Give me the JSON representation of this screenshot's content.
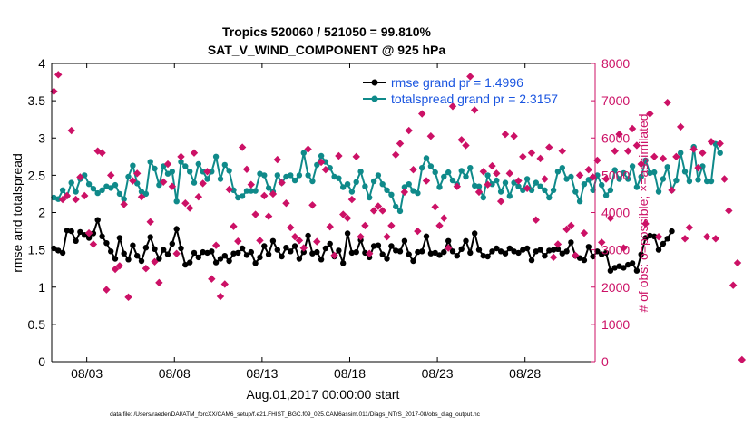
{
  "chart_data": {
    "type": "line",
    "title_line1": "Tropics 520060 / 521050 = 99.810%",
    "title_line2": "SAT_V_WIND_COMPONENT @ 925 hPa",
    "xlabel": "Aug.01,2017 00:00:00 start",
    "ylabel_left": "rmse and totalspread",
    "ylabel_right": "# of obs: o=possible; ×=assimilated",
    "footer": "data file: /Users/raeder/DAI/ATM_forcXX/CAM6_setup/f.e21.FHIST_BGC.f09_025.CAM6assim.011/Diags_NTrS_2017-08/obs_diag_output.nc",
    "xlim": [
      1,
      32
    ],
    "ylim_left": [
      0,
      4
    ],
    "ylim_right": [
      0,
      8000
    ],
    "x_ticks": [
      3,
      8,
      13,
      18,
      23,
      28
    ],
    "x_tick_labels": [
      "08/03",
      "08/08",
      "08/13",
      "08/18",
      "08/23",
      "08/28"
    ],
    "y_left_ticks": [
      0,
      0.5,
      1,
      1.5,
      2,
      2.5,
      3,
      3.5,
      4
    ],
    "y_left_tick_labels": [
      "0",
      "0.5",
      "1",
      "1.5",
      "2",
      "2.5",
      "3",
      "3.5",
      "4"
    ],
    "y_right_ticks": [
      0,
      1000,
      2000,
      3000,
      4000,
      5000,
      6000,
      7000,
      8000
    ],
    "y_right_tick_labels": [
      "0",
      "1000",
      "2000",
      "3000",
      "4000",
      "5000",
      "6000",
      "7000",
      "8000"
    ],
    "x_start": 1.125,
    "x_step": 0.25,
    "series": [
      {
        "name": "rmse",
        "legend": "rmse grand pr = 1.4996",
        "color": "#000000",
        "axis": "left",
        "values": [
          1.52,
          1.49,
          1.46,
          1.76,
          1.75,
          1.62,
          1.74,
          1.7,
          1.66,
          1.72,
          1.9,
          1.68,
          1.59,
          1.48,
          1.38,
          1.66,
          1.45,
          1.37,
          1.56,
          1.42,
          1.35,
          1.53,
          1.67,
          1.51,
          1.38,
          1.5,
          1.44,
          1.58,
          1.78,
          1.52,
          1.3,
          1.33,
          1.46,
          1.4,
          1.47,
          1.46,
          1.48,
          1.33,
          1.38,
          1.42,
          1.35,
          1.45,
          1.46,
          1.52,
          1.43,
          1.47,
          1.32,
          1.4,
          1.55,
          1.44,
          1.62,
          1.5,
          1.41,
          1.53,
          1.48,
          1.55,
          1.38,
          1.47,
          1.69,
          1.45,
          1.47,
          1.37,
          1.52,
          1.58,
          1.41,
          1.49,
          1.32,
          1.72,
          1.46,
          1.47,
          1.63,
          1.46,
          1.4,
          1.55,
          1.56,
          1.44,
          1.38,
          1.55,
          1.49,
          1.48,
          1.62,
          1.44,
          1.35,
          1.47,
          1.48,
          1.68,
          1.45,
          1.46,
          1.43,
          1.47,
          1.62,
          1.48,
          1.42,
          1.51,
          1.62,
          1.46,
          1.72,
          1.5,
          1.42,
          1.41,
          1.48,
          1.52,
          1.48,
          1.45,
          1.52,
          1.48,
          1.46,
          1.5,
          1.52,
          1.36,
          1.48,
          1.5,
          1.42,
          1.49,
          1.5,
          1.51,
          1.45,
          1.48,
          1.6,
          1.42,
          1.39,
          1.36,
          1.54,
          1.41,
          1.48,
          1.44,
          1.46,
          1.22,
          1.26,
          1.28,
          1.26,
          1.3,
          1.32,
          1.22,
          1.44,
          1.66,
          1.69,
          1.68,
          1.5,
          1.58,
          1.65,
          1.75
        ]
      },
      {
        "name": "totalspread",
        "legend": "totalspread grand pr = 2.3157",
        "color": "#0f8a8a",
        "axis": "left",
        "values": [
          2.2,
          2.18,
          2.3,
          2.22,
          2.4,
          2.28,
          2.45,
          2.5,
          2.38,
          2.32,
          2.26,
          2.3,
          2.35,
          2.33,
          2.37,
          2.25,
          2.18,
          2.48,
          2.63,
          2.39,
          2.28,
          2.25,
          2.68,
          2.59,
          2.37,
          2.62,
          2.52,
          2.55,
          2.15,
          2.68,
          2.62,
          2.55,
          2.4,
          2.65,
          2.55,
          2.45,
          2.55,
          2.75,
          2.45,
          2.64,
          2.56,
          2.3,
          2.2,
          2.22,
          2.29,
          2.29,
          2.29,
          2.52,
          2.5,
          2.33,
          2.28,
          2.5,
          2.4,
          2.48,
          2.5,
          2.43,
          2.5,
          2.8,
          2.5,
          2.42,
          2.64,
          2.76,
          2.68,
          2.6,
          2.48,
          2.46,
          2.34,
          2.38,
          2.28,
          2.41,
          2.55,
          2.35,
          2.2,
          2.42,
          2.5,
          2.38,
          2.3,
          2.24,
          2.08,
          2.02,
          2.34,
          2.38,
          2.29,
          2.26,
          2.6,
          2.73,
          2.62,
          2.54,
          2.34,
          2.48,
          2.54,
          2.43,
          2.38,
          2.56,
          2.48,
          2.6,
          2.36,
          2.35,
          2.2,
          2.5,
          2.38,
          2.43,
          2.28,
          2.4,
          2.22,
          2.4,
          2.35,
          2.3,
          2.45,
          2.3,
          2.4,
          2.35,
          2.3,
          2.2,
          2.3,
          2.55,
          2.6,
          2.45,
          2.48,
          2.28,
          2.15,
          2.38,
          2.44,
          2.3,
          2.5,
          2.37,
          2.23,
          2.3,
          2.57,
          2.45,
          2.53,
          2.45,
          2.62,
          2.34,
          2.48,
          2.7,
          2.53,
          2.54,
          2.28,
          2.45,
          2.61,
          2.3,
          2.43,
          2.8,
          2.55,
          2.42,
          2.88,
          2.44,
          2.62,
          2.42,
          2.42,
          2.92,
          2.8
        ]
      },
      {
        "name": "obs_possible_assimilated",
        "color": "#cc1166",
        "axis": "right",
        "values": [
          7250,
          7700,
          4350,
          4450,
          6200,
          4350,
          4950,
          4450,
          3450,
          3150,
          5650,
          5600,
          1930,
          5000,
          2480,
          2570,
          4220,
          1730,
          4850,
          5050,
          4420,
          2500,
          3750,
          2680,
          2120,
          4820,
          5300,
          4700,
          2900,
          5500,
          4250,
          4120,
          5600,
          4420,
          4780,
          5100,
          2220,
          3120,
          1750,
          2080,
          4620,
          3630,
          3230,
          5750,
          5160,
          4750,
          3950,
          3250,
          4450,
          3900,
          4500,
          5420,
          4800,
          4250,
          3600,
          3350,
          3250,
          3050,
          5700,
          4200,
          3220,
          5350,
          5150,
          3620,
          2850,
          5520,
          3950,
          3850,
          4350,
          5500,
          3350,
          3650,
          2900,
          4050,
          4170,
          4050,
          3350,
          3650,
          5550,
          5850,
          4550,
          6200,
          5150,
          3500,
          6650,
          4850,
          6050,
          4150,
          3650,
          3850,
          3050,
          6850,
          4700,
          5950,
          5800,
          7650,
          6750,
          4550,
          5100,
          4750,
          5250,
          5050,
          4300,
          6100,
          5050,
          6050,
          4850,
          5500,
          4650,
          5600,
          3800,
          5450,
          4900,
          5750,
          2800,
          3150,
          5650,
          3550,
          3650,
          2850,
          5000,
          3450,
          5150,
          4950,
          5400,
          3200,
          4900,
          3850,
          5650,
          6100,
          3050,
          5650,
          6250,
          5800,
          5300,
          3700,
          6650,
          5500,
          3350,
          5450,
          6950,
          4600,
          5500,
          6300,
          3300,
          3600,
          5700,
          5200,
          5600,
          3350,
          5900,
          3300,
          5850,
          4900,
          4050,
          2050,
          2650,
          50
        ]
      }
    ]
  }
}
